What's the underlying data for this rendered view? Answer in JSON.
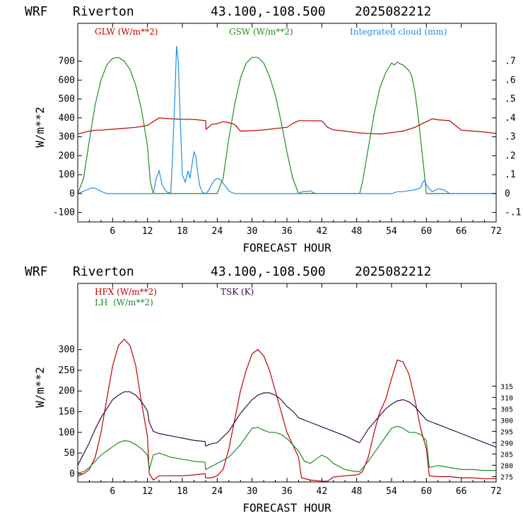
{
  "chart_data": [
    {
      "type": "line",
      "header": {
        "model": "WRF",
        "station": "Riverton",
        "coords": "43.100,-108.500",
        "run": "2025082212"
      },
      "xlabel": "FORECAST HOUR",
      "ylabel": "W/m**2",
      "xlim": [
        0,
        72
      ],
      "ylim": [
        -150,
        900
      ],
      "xticks": [
        6,
        12,
        18,
        24,
        30,
        36,
        42,
        48,
        54,
        60,
        66,
        72
      ],
      "yticks": [
        -100,
        0,
        100,
        200,
        300,
        400,
        500,
        600,
        700
      ],
      "y2lim": [
        -0.15,
        0.9
      ],
      "y2ticks": [
        "-.1",
        "0",
        ".1",
        ".2",
        ".3",
        ".4",
        ".5",
        ".6",
        ".7"
      ],
      "y2tick_values": [
        -0.1,
        0,
        0.1,
        0.2,
        0.3,
        0.4,
        0.5,
        0.6,
        0.7
      ],
      "legend": [
        "GLW (W/m**2)",
        "GSW (W/m**2)",
        "Integrated cloud (mm)"
      ],
      "series": [
        {
          "name": "GLW (W/m**2)",
          "color": "#c00000",
          "axis": "left",
          "x": [
            0,
            1,
            2,
            3,
            4,
            5,
            6,
            8,
            10,
            11,
            12,
            12.5,
            14,
            16,
            18,
            20,
            22,
            22.1,
            23,
            24,
            25,
            26,
            27,
            28,
            30,
            32,
            34,
            36,
            37,
            38,
            40,
            42,
            43,
            44,
            46,
            48,
            50,
            52,
            54,
            56,
            58,
            60,
            61,
            62,
            64,
            65,
            66,
            68,
            70,
            72
          ],
          "y": [
            315,
            323,
            330,
            335,
            335,
            338,
            340,
            345,
            350,
            355,
            360,
            370,
            400,
            395,
            393,
            392,
            385,
            340,
            365,
            370,
            380,
            375,
            365,
            330,
            332,
            336,
            344,
            350,
            370,
            385,
            385,
            384,
            350,
            337,
            330,
            322,
            318,
            315,
            322,
            330,
            350,
            380,
            395,
            390,
            385,
            360,
            335,
            330,
            325,
            318
          ]
        },
        {
          "name": "GSW (W/m**2)",
          "color": "#228b22",
          "axis": "left",
          "x": [
            0,
            1,
            2,
            3,
            4,
            5,
            6,
            7,
            8,
            9,
            10,
            11,
            12,
            12.5,
            13,
            14,
            24,
            25,
            26,
            27,
            28,
            29,
            30,
            31,
            32,
            33,
            34,
            35,
            36,
            37,
            38,
            48.5,
            49,
            50,
            51,
            52,
            53,
            54,
            54.5,
            55,
            55.5,
            56,
            57,
            57.5,
            58,
            58.5,
            59,
            59.3,
            59.7,
            60,
            72
          ],
          "y": [
            0,
            80,
            280,
            470,
            600,
            680,
            715,
            720,
            700,
            655,
            570,
            440,
            250,
            60,
            0,
            0,
            0,
            80,
            290,
            470,
            610,
            690,
            720,
            720,
            690,
            620,
            520,
            380,
            220,
            80,
            0,
            0,
            60,
            240,
            420,
            560,
            640,
            690,
            680,
            695,
            685,
            680,
            650,
            620,
            540,
            430,
            290,
            200,
            90,
            0,
            0
          ]
        },
        {
          "name": "Integrated cloud (mm)",
          "color": "#1e8fe6",
          "axis": "right",
          "x": [
            0,
            0.5,
            1,
            1.5,
            2,
            2.5,
            3,
            3.5,
            4,
            4.5,
            5,
            13,
            13.5,
            14,
            14.5,
            15,
            15.5,
            16,
            16.3,
            16.7,
            17,
            17.3,
            17.7,
            18,
            18.5,
            19,
            19.3,
            19.7,
            20,
            20.3,
            20.7,
            21,
            21.5,
            22,
            22.5,
            23,
            23.5,
            24,
            24.5,
            25,
            25.5,
            26,
            26.5,
            27,
            38,
            38.5,
            39,
            39.5,
            40,
            40.5,
            41,
            42,
            54,
            55,
            56,
            57,
            58,
            59,
            59.3,
            59.7,
            60,
            60.5,
            61,
            62,
            63,
            64,
            72
          ],
          "y": [
            0,
            0.005,
            0.012,
            0.018,
            0.025,
            0.03,
            0.028,
            0.02,
            0.012,
            0.005,
            0,
            0,
            0.08,
            0.12,
            0.05,
            0.02,
            0.005,
            0.005,
            0.18,
            0.5,
            0.78,
            0.7,
            0.35,
            0.1,
            0.06,
            0.12,
            0.08,
            0.16,
            0.22,
            0.2,
            0.1,
            0.04,
            0.005,
            0,
            0.015,
            0.045,
            0.07,
            0.08,
            0.075,
            0.055,
            0.035,
            0.015,
            0.005,
            0,
            0,
            0.008,
            0.012,
            0.01,
            0.015,
            0.005,
            0,
            0,
            0,
            0.01,
            0.01,
            0.015,
            0.02,
            0.03,
            0.055,
            0.07,
            0.045,
            0.025,
            0.01,
            0.025,
            0.02,
            0,
            0
          ]
        }
      ]
    },
    {
      "type": "line",
      "header": {
        "model": "WRF",
        "station": "Riverton",
        "coords": "43.100,-108.500",
        "run": "2025082212"
      },
      "xlabel": "FORECAST HOUR",
      "ylabel": "W/m**2",
      "xlim": [
        0,
        72
      ],
      "ylim": [
        -20,
        460
      ],
      "xticks": [
        6,
        12,
        18,
        24,
        30,
        36,
        42,
        48,
        54,
        60,
        66,
        72
      ],
      "yticks": [
        0,
        50,
        100,
        150,
        200,
        250,
        300
      ],
      "y2lim": [
        272.6,
        360.4
      ],
      "y2ticks": [
        "275",
        "280",
        "285",
        "290",
        "295",
        "300",
        "305",
        "310",
        "315"
      ],
      "y2tick_values": [
        275,
        280,
        285,
        290,
        295,
        300,
        305,
        310,
        315
      ],
      "legend": [
        "HFX (W/m**2)",
        "LH  (W/m**2)",
        "TSK (K)"
      ],
      "series": [
        {
          "name": "HFX (W/m**2)",
          "color": "#c00000",
          "axis": "left",
          "x": [
            0,
            1,
            2,
            3,
            4,
            5,
            6,
            7,
            8,
            9,
            10,
            11,
            12,
            12.3,
            13,
            14,
            16,
            18,
            20,
            21.9,
            22,
            23,
            24,
            25,
            26,
            27,
            28,
            29,
            30,
            31,
            32,
            33,
            34,
            35,
            36,
            37,
            38,
            38.5,
            40,
            42,
            43,
            44,
            46,
            48,
            48.5,
            49,
            50,
            51,
            52,
            53,
            54,
            55,
            56,
            57,
            58,
            59,
            60,
            60.5,
            62,
            64,
            66,
            68,
            70,
            72
          ],
          "y": [
            -5,
            0,
            10,
            40,
            100,
            180,
            260,
            310,
            325,
            310,
            260,
            170,
            90,
            0,
            -15,
            -5,
            -5,
            -5,
            -3,
            0,
            -10,
            -10,
            -5,
            10,
            60,
            130,
            200,
            250,
            290,
            300,
            285,
            250,
            200,
            150,
            100,
            70,
            40,
            -10,
            -15,
            -18,
            -18,
            -8,
            -5,
            -3,
            0,
            5,
            40,
            100,
            150,
            180,
            230,
            275,
            270,
            240,
            180,
            110,
            60,
            -5,
            -7,
            -7,
            -10,
            -10,
            -12,
            -12
          ]
        },
        {
          "name": "LH  (W/m**2)",
          "color": "#228b22",
          "axis": "left",
          "x": [
            0,
            1,
            2,
            3,
            4,
            5,
            6,
            7,
            8,
            9,
            10,
            11,
            12,
            12.3,
            13,
            14,
            16,
            18,
            20,
            21.9,
            22,
            24,
            26,
            28,
            29,
            30,
            31,
            32,
            33,
            34,
            35,
            36,
            37,
            38,
            39,
            40,
            41,
            42,
            43,
            44,
            46,
            48,
            48.5,
            50,
            52,
            53,
            54,
            55,
            56,
            57,
            58,
            59,
            60,
            60.5,
            62,
            64,
            66,
            68,
            70,
            72
          ],
          "y": [
            2,
            5,
            15,
            30,
            45,
            55,
            65,
            75,
            80,
            78,
            70,
            60,
            45,
            10,
            45,
            50,
            40,
            35,
            30,
            28,
            10,
            25,
            40,
            70,
            90,
            110,
            112,
            105,
            100,
            100,
            95,
            85,
            70,
            55,
            30,
            25,
            35,
            45,
            38,
            25,
            10,
            5,
            5,
            30,
            70,
            90,
            110,
            115,
            110,
            100,
            100,
            95,
            80,
            15,
            20,
            15,
            10,
            10,
            8,
            8
          ]
        },
        {
          "name": "TSK (K)",
          "color": "#3a0a4a",
          "axis": "right",
          "x": [
            0,
            1,
            2,
            3,
            4,
            5,
            6,
            7,
            8,
            9,
            10,
            11,
            12,
            12.3,
            13,
            14,
            16,
            18,
            20,
            21.9,
            22,
            23,
            24,
            26,
            27,
            28,
            29,
            30,
            31,
            32,
            33,
            34,
            35,
            36,
            37,
            38,
            39,
            40,
            42,
            44,
            46,
            48,
            48.5,
            50,
            52,
            53,
            54,
            55,
            56,
            57,
            58,
            59,
            60,
            61,
            62,
            64,
            66,
            68,
            70,
            72
          ],
          "y": [
            280,
            285,
            290,
            296,
            301,
            305,
            309,
            311,
            312.5,
            312.5,
            311,
            308,
            304,
            299,
            295,
            294,
            293,
            292,
            291,
            290.5,
            288.5,
            289.5,
            290,
            295,
            299,
            303,
            306,
            309,
            311,
            312,
            312,
            311,
            309,
            306,
            304,
            301,
            300,
            299,
            297,
            295,
            293,
            290.5,
            290,
            296,
            302,
            305,
            307,
            308.5,
            309,
            308,
            306,
            303,
            300,
            299,
            298,
            296,
            294,
            292,
            290,
            288
          ]
        }
      ]
    }
  ]
}
